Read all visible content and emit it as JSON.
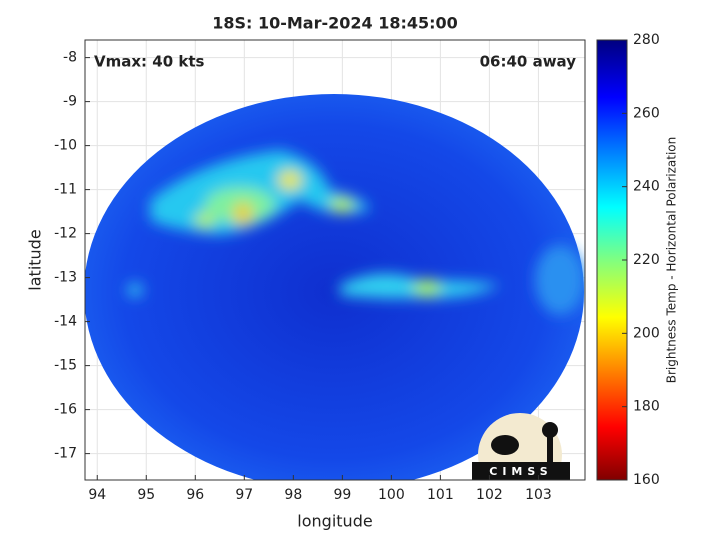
{
  "chart_data": {
    "type": "image",
    "title": "18S: 10-Mar-2024 18:45:00",
    "annotations": [
      "Vmax: 40 kts",
      "06:40 away"
    ],
    "x_label": "longitude",
    "y_label": "latitude",
    "xlim": [
      93.75,
      103.95
    ],
    "xticks": [
      94,
      95,
      96,
      97,
      98,
      99,
      100,
      101,
      102,
      103
    ],
    "ylim": [
      -17.6,
      -7.6
    ],
    "yticks": [
      -8,
      -9,
      -10,
      -11,
      -12,
      -13,
      -14,
      -15,
      -16,
      -17
    ],
    "grid": true,
    "colorbar": {
      "label": "Brightness Temp - Horizontal Polarization",
      "clim": [
        160,
        280
      ],
      "ticks": [
        160,
        180,
        200,
        220,
        240,
        260,
        280
      ]
    },
    "logo_text": "CIMSS"
  }
}
